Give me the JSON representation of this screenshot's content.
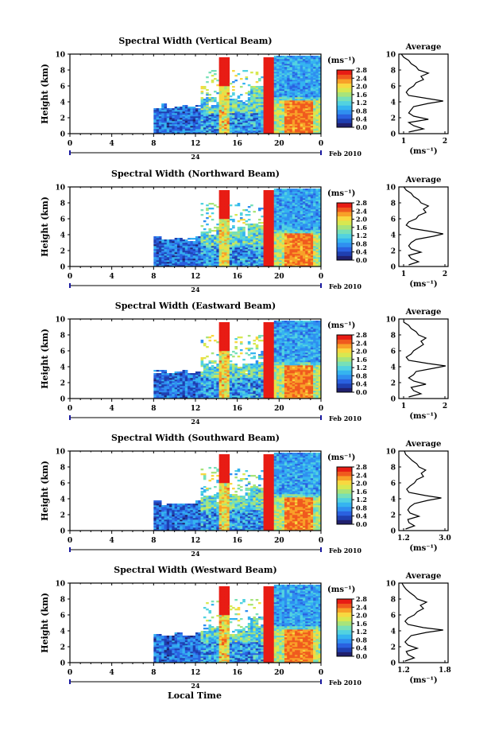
{
  "colormap": [
    "#20206e",
    "#1f3fb0",
    "#2a61e0",
    "#2f8ff0",
    "#35b4f0",
    "#52d2e0",
    "#77e0b8",
    "#a8e47a",
    "#d8e850",
    "#f8d840",
    "#f8a028",
    "#f05a1e",
    "#e81c14"
  ],
  "colorbar_unit": "(ms⁻¹)",
  "colorbar_ticks": [
    "0.0",
    "0.4",
    "0.8",
    "1.2",
    "1.6",
    "2.0",
    "2.4",
    "2.8"
  ],
  "x_ticks": [
    "0",
    "4",
    "8",
    "12",
    "16",
    "20",
    "0"
  ],
  "date_day": "24",
  "date_label": "Feb 2010",
  "avg_title": "Average",
  "avg_unit": "(ms⁻¹)",
  "ylabel": "Height (km)",
  "y_ticks": [
    "0",
    "2",
    "4",
    "6",
    "8",
    "10"
  ],
  "xlabel_bottom": "Local Time",
  "chart_data": [
    {
      "type": "heatmap",
      "title": "Spectral Width (Vertical Beam)",
      "xlim": [
        0,
        24
      ],
      "ylim": [
        0,
        10
      ],
      "zlim": [
        0,
        2.8
      ],
      "avg_xticks": [
        "1",
        "2"
      ],
      "avg_xlim": [
        1,
        2
      ],
      "average_profile": [
        [
          1.2,
          0.2
        ],
        [
          1.5,
          0.6
        ],
        [
          1.3,
          1.0
        ],
        [
          1.2,
          1.4
        ],
        [
          1.6,
          1.8
        ],
        [
          1.3,
          2.2
        ],
        [
          1.2,
          2.6
        ],
        [
          1.25,
          3.0
        ],
        [
          1.3,
          3.4
        ],
        [
          1.6,
          3.8
        ],
        [
          1.9,
          4.1
        ],
        [
          1.6,
          4.4
        ],
        [
          1.2,
          4.8
        ],
        [
          1.15,
          5.2
        ],
        [
          1.2,
          5.6
        ],
        [
          1.3,
          6.0
        ],
        [
          1.35,
          6.4
        ],
        [
          1.5,
          6.8
        ],
        [
          1.45,
          7.2
        ],
        [
          1.6,
          7.6
        ],
        [
          1.4,
          8.0
        ],
        [
          1.35,
          8.4
        ],
        [
          1.25,
          8.8
        ],
        [
          1.2,
          9.2
        ],
        [
          1.1,
          9.6
        ],
        [
          1.05,
          10.0
        ]
      ]
    },
    {
      "type": "heatmap",
      "title": "Spectral Width (Northward Beam)",
      "xlim": [
        0,
        24
      ],
      "ylim": [
        0,
        10
      ],
      "zlim": [
        0,
        2.8
      ],
      "avg_xticks": [
        "1",
        "2"
      ],
      "avg_xlim": [
        1,
        2
      ],
      "average_profile": [
        [
          1.2,
          0.2
        ],
        [
          1.4,
          0.6
        ],
        [
          1.25,
          1.0
        ],
        [
          1.2,
          1.4
        ],
        [
          1.45,
          1.8
        ],
        [
          1.25,
          2.2
        ],
        [
          1.2,
          2.6
        ],
        [
          1.25,
          3.0
        ],
        [
          1.35,
          3.4
        ],
        [
          1.7,
          3.8
        ],
        [
          1.9,
          4.1
        ],
        [
          1.65,
          4.4
        ],
        [
          1.25,
          4.8
        ],
        [
          1.15,
          5.2
        ],
        [
          1.2,
          5.6
        ],
        [
          1.35,
          6.0
        ],
        [
          1.4,
          6.4
        ],
        [
          1.55,
          6.8
        ],
        [
          1.5,
          7.2
        ],
        [
          1.6,
          7.6
        ],
        [
          1.45,
          8.0
        ],
        [
          1.4,
          8.4
        ],
        [
          1.3,
          8.8
        ],
        [
          1.25,
          9.2
        ],
        [
          1.15,
          9.6
        ],
        [
          1.1,
          10.0
        ]
      ]
    },
    {
      "type": "heatmap",
      "title": "Spectral Width (Eastward Beam)",
      "xlim": [
        0,
        24
      ],
      "ylim": [
        0,
        10
      ],
      "zlim": [
        0,
        2.8
      ],
      "avg_xticks": [
        "1",
        "2"
      ],
      "avg_xlim": [
        1,
        2
      ],
      "average_profile": [
        [
          1.2,
          0.2
        ],
        [
          1.45,
          0.6
        ],
        [
          1.3,
          1.0
        ],
        [
          1.25,
          1.4
        ],
        [
          1.55,
          1.8
        ],
        [
          1.3,
          2.2
        ],
        [
          1.2,
          2.6
        ],
        [
          1.3,
          3.0
        ],
        [
          1.35,
          3.4
        ],
        [
          1.7,
          3.8
        ],
        [
          1.95,
          4.1
        ],
        [
          1.6,
          4.4
        ],
        [
          1.2,
          4.8
        ],
        [
          1.15,
          5.2
        ],
        [
          1.25,
          5.6
        ],
        [
          1.3,
          6.0
        ],
        [
          1.4,
          6.4
        ],
        [
          1.5,
          6.8
        ],
        [
          1.45,
          7.2
        ],
        [
          1.55,
          7.6
        ],
        [
          1.4,
          8.0
        ],
        [
          1.35,
          8.4
        ],
        [
          1.25,
          8.8
        ],
        [
          1.2,
          9.2
        ],
        [
          1.1,
          9.6
        ],
        [
          1.1,
          10.0
        ]
      ]
    },
    {
      "type": "heatmap",
      "title": "Spectral Width (Southward Beam)",
      "xlim": [
        0,
        24
      ],
      "ylim": [
        0,
        10
      ],
      "zlim": [
        0,
        2.8
      ],
      "avg_xticks": [
        "1.2",
        "3.0"
      ],
      "avg_xlim": [
        1.0,
        3.2
      ],
      "average_profile": [
        [
          1.3,
          0.2
        ],
        [
          1.7,
          0.6
        ],
        [
          1.45,
          1.0
        ],
        [
          1.4,
          1.4
        ],
        [
          1.9,
          1.8
        ],
        [
          1.5,
          2.2
        ],
        [
          1.4,
          2.6
        ],
        [
          1.5,
          3.0
        ],
        [
          1.7,
          3.4
        ],
        [
          2.3,
          3.8
        ],
        [
          2.9,
          4.1
        ],
        [
          2.2,
          4.4
        ],
        [
          1.45,
          4.8
        ],
        [
          1.35,
          5.2
        ],
        [
          1.5,
          5.6
        ],
        [
          1.7,
          6.0
        ],
        [
          1.8,
          6.4
        ],
        [
          2.1,
          6.8
        ],
        [
          2.0,
          7.2
        ],
        [
          2.2,
          7.6
        ],
        [
          1.9,
          8.0
        ],
        [
          1.8,
          8.4
        ],
        [
          1.6,
          8.8
        ],
        [
          1.45,
          9.2
        ],
        [
          1.3,
          9.6
        ],
        [
          1.25,
          10.0
        ]
      ]
    },
    {
      "type": "heatmap",
      "title": "Spectral Width (Westward Beam)",
      "xlim": [
        0,
        24
      ],
      "ylim": [
        0,
        10
      ],
      "zlim": [
        0,
        2.8
      ],
      "avg_xticks": [
        "1.2",
        "1.8"
      ],
      "avg_xlim": [
        1.1,
        1.9
      ],
      "average_profile": [
        [
          1.2,
          0.2
        ],
        [
          1.35,
          0.6
        ],
        [
          1.25,
          1.0
        ],
        [
          1.22,
          1.4
        ],
        [
          1.4,
          1.8
        ],
        [
          1.25,
          2.2
        ],
        [
          1.2,
          2.6
        ],
        [
          1.25,
          3.0
        ],
        [
          1.3,
          3.4
        ],
        [
          1.55,
          3.8
        ],
        [
          1.82,
          4.1
        ],
        [
          1.5,
          4.4
        ],
        [
          1.25,
          4.8
        ],
        [
          1.2,
          5.2
        ],
        [
          1.25,
          5.6
        ],
        [
          1.35,
          6.0
        ],
        [
          1.4,
          6.4
        ],
        [
          1.5,
          6.8
        ],
        [
          1.45,
          7.2
        ],
        [
          1.55,
          7.6
        ],
        [
          1.4,
          8.0
        ],
        [
          1.35,
          8.4
        ],
        [
          1.28,
          8.8
        ],
        [
          1.22,
          9.2
        ],
        [
          1.18,
          9.6
        ],
        [
          1.15,
          10.0
        ]
      ]
    }
  ]
}
